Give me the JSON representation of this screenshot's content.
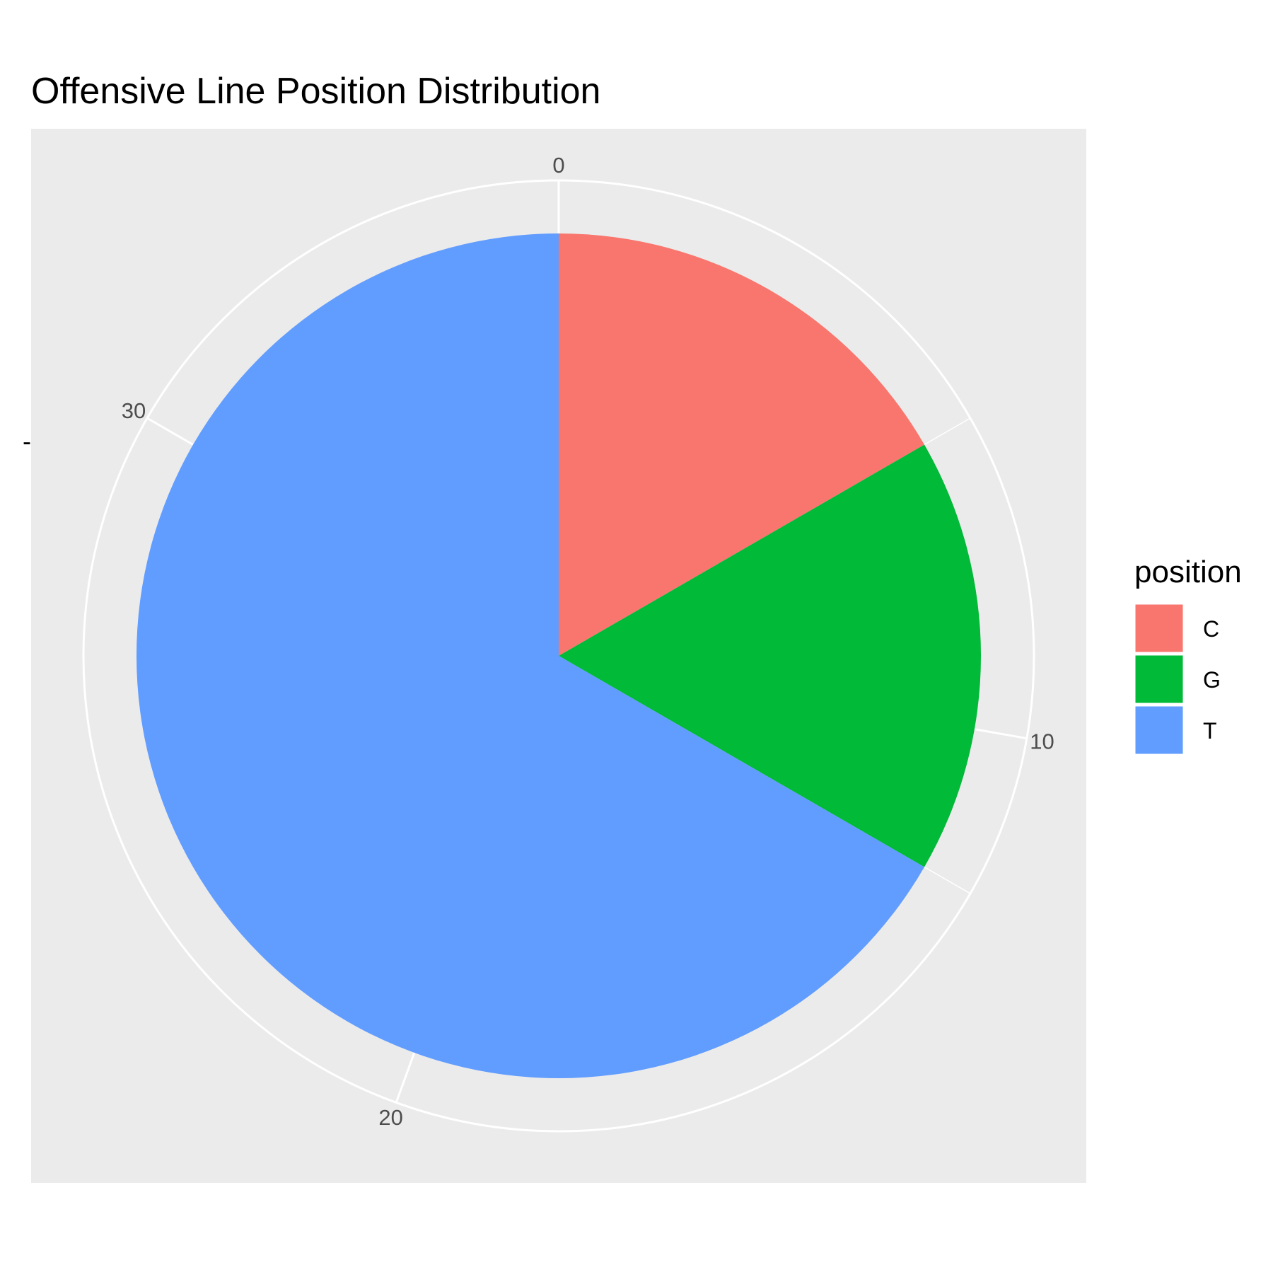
{
  "chart_data": {
    "type": "pie",
    "title": "Offensive Line Position Distribution",
    "x_axis_label": "-",
    "theta_ticks": [
      0,
      10,
      20,
      30
    ],
    "theta_max": 36,
    "legend": {
      "title": "position",
      "placement": "right"
    },
    "slices": [
      {
        "label": "C",
        "value": 6,
        "color": "#F8766D"
      },
      {
        "label": "G",
        "value": 6,
        "color": "#00BA38"
      },
      {
        "label": "T",
        "value": 24,
        "color": "#619CFF"
      }
    ],
    "panel_background": "#EBEBEB",
    "grid_color": "#FFFFFF",
    "tick_label_color": "#4D4D4D"
  }
}
